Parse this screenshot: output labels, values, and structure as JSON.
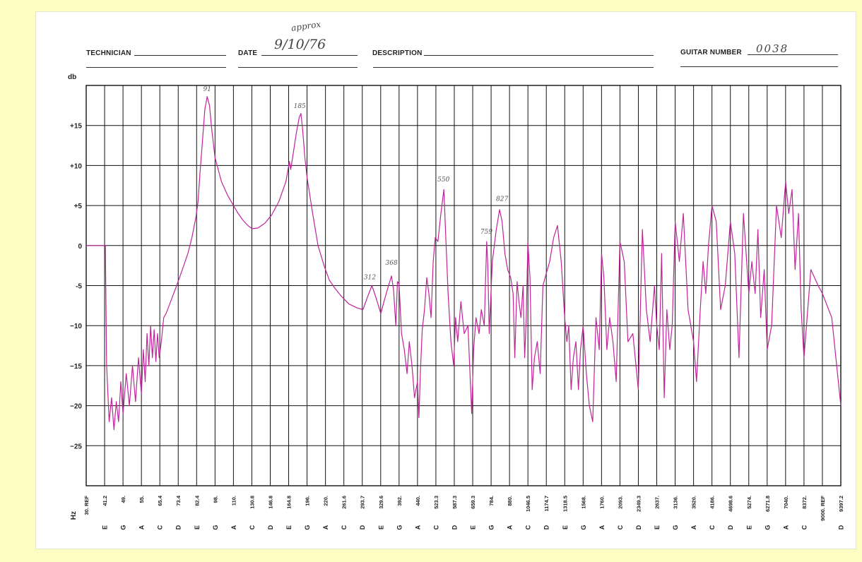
{
  "header": {
    "technician_label": "TECHNICIAN",
    "date_label": "DATE",
    "date_value": "9/10/76",
    "date_note": "approx",
    "description_label": "DESCRIPTION",
    "guitar_number_label": "GUITAR NUMBER",
    "guitar_number_value": "0038"
  },
  "colors": {
    "trace": "#c0249a",
    "grid": "#111111",
    "paper": "#ffffff",
    "background": "#fdfdc4"
  },
  "chart_data": {
    "type": "line",
    "title": "",
    "xlabel": "Hz",
    "ylabel": "db",
    "x_scale": "log",
    "xlim": [
      30,
      9397.2
    ],
    "ylim": [
      -30,
      20
    ],
    "grid": true,
    "legend": "none",
    "y_ticks": [
      {
        "value": 15,
        "label": "+15"
      },
      {
        "value": 10,
        "label": "+10"
      },
      {
        "value": 5,
        "label": "+5"
      },
      {
        "value": 0,
        "label": "0"
      },
      {
        "value": -5,
        "label": "-5"
      },
      {
        "value": -10,
        "label": "−10"
      },
      {
        "value": -15,
        "label": "−15"
      },
      {
        "value": -20,
        "label": "−20"
      },
      {
        "value": -25,
        "label": "−25"
      }
    ],
    "x_ticks": [
      {
        "value": 30,
        "freq": "30. REF",
        "note": ""
      },
      {
        "value": 41.2,
        "freq": "41.2",
        "note": "E"
      },
      {
        "value": 49,
        "freq": "49.",
        "note": "G"
      },
      {
        "value": 55,
        "freq": "55.",
        "note": "A"
      },
      {
        "value": 65.4,
        "freq": "65.4",
        "note": "C"
      },
      {
        "value": 73.4,
        "freq": "73.4",
        "note": "D"
      },
      {
        "value": 82.4,
        "freq": "82.4",
        "note": "E"
      },
      {
        "value": 98,
        "freq": "98.",
        "note": "G"
      },
      {
        "value": 110,
        "freq": "110.",
        "note": "A"
      },
      {
        "value": 130.8,
        "freq": "130.8",
        "note": "C"
      },
      {
        "value": 146.8,
        "freq": "146.8",
        "note": "D"
      },
      {
        "value": 164.8,
        "freq": "164.8",
        "note": "E"
      },
      {
        "value": 196,
        "freq": "196.",
        "note": "G"
      },
      {
        "value": 220,
        "freq": "220.",
        "note": "A"
      },
      {
        "value": 261.6,
        "freq": "261.6",
        "note": "C"
      },
      {
        "value": 293.7,
        "freq": "293.7",
        "note": "D"
      },
      {
        "value": 329.6,
        "freq": "329.6",
        "note": "E"
      },
      {
        "value": 392,
        "freq": "392.",
        "note": "G"
      },
      {
        "value": 440,
        "freq": "440.",
        "note": "A"
      },
      {
        "value": 523.3,
        "freq": "523.3",
        "note": "C"
      },
      {
        "value": 587.3,
        "freq": "587.3",
        "note": "D"
      },
      {
        "value": 659.3,
        "freq": "659.3",
        "note": "E"
      },
      {
        "value": 784,
        "freq": "784.",
        "note": "G"
      },
      {
        "value": 880,
        "freq": "880.",
        "note": "A"
      },
      {
        "value": 1046.5,
        "freq": "1046.5",
        "note": "C"
      },
      {
        "value": 1174.7,
        "freq": "1174.7",
        "note": "D"
      },
      {
        "value": 1318.5,
        "freq": "1318.5",
        "note": "E"
      },
      {
        "value": 1568,
        "freq": "1568.",
        "note": "G"
      },
      {
        "value": 1760,
        "freq": "1760.",
        "note": "A"
      },
      {
        "value": 2093,
        "freq": "2093.",
        "note": "C"
      },
      {
        "value": 2349.3,
        "freq": "2349.3",
        "note": "D"
      },
      {
        "value": 2637,
        "freq": "2637.",
        "note": "E"
      },
      {
        "value": 3136,
        "freq": "3136.",
        "note": "G"
      },
      {
        "value": 3520,
        "freq": "3520.",
        "note": "A"
      },
      {
        "value": 4186,
        "freq": "4186.",
        "note": "C"
      },
      {
        "value": 4698.6,
        "freq": "4698.6",
        "note": "D"
      },
      {
        "value": 5274,
        "freq": "5274.",
        "note": "E"
      },
      {
        "value": 6271.8,
        "freq": "6271.8",
        "note": "G"
      },
      {
        "value": 7040,
        "freq": "7040.",
        "note": "A"
      },
      {
        "value": 8372,
        "freq": "8372.",
        "note": "C"
      },
      {
        "value": 9000,
        "freq": "9000. REF",
        "note": ""
      },
      {
        "value": 9397.2,
        "freq": "9397.2",
        "note": "D"
      }
    ],
    "annotations": [
      {
        "text": "91",
        "x": 91,
        "y": 19.3
      },
      {
        "text": "185",
        "x": 183,
        "y": 17.2
      },
      {
        "text": "312",
        "x": 308,
        "y": -4.2
      },
      {
        "text": "368",
        "x": 365,
        "y": -2.4
      },
      {
        "text": "550",
        "x": 549,
        "y": 8.0
      },
      {
        "text": "759",
        "x": 750,
        "y": 1.5
      },
      {
        "text": "827",
        "x": 840,
        "y": 5.6
      }
    ],
    "series": [
      {
        "values": [
          [
            30,
            0
          ],
          [
            40,
            0
          ],
          [
            41.5,
            0
          ],
          [
            42,
            -15
          ],
          [
            43,
            -22
          ],
          [
            44,
            -19
          ],
          [
            45,
            -23
          ],
          [
            46,
            -19.5
          ],
          [
            47,
            -22
          ],
          [
            48,
            -17
          ],
          [
            49,
            -21
          ],
          [
            50,
            -16
          ],
          [
            51,
            -20
          ],
          [
            52,
            -15
          ],
          [
            53,
            -19.5
          ],
          [
            54,
            -14
          ],
          [
            55,
            -18.5
          ],
          [
            56,
            -13
          ],
          [
            57,
            -17
          ],
          [
            58,
            -11
          ],
          [
            59,
            -15
          ],
          [
            60,
            -10
          ],
          [
            61,
            -14
          ],
          [
            62,
            -10.5
          ],
          [
            63,
            -14.5
          ],
          [
            64,
            -11
          ],
          [
            65,
            -14
          ],
          [
            66,
            -12
          ],
          [
            67,
            -9
          ],
          [
            68,
            -8.5
          ],
          [
            70,
            -7
          ],
          [
            72,
            -5.5
          ],
          [
            74,
            -4
          ],
          [
            76,
            -2.5
          ],
          [
            78,
            -1
          ],
          [
            80,
            1
          ],
          [
            82,
            3.5
          ],
          [
            83.5,
            5.5
          ],
          [
            85,
            9
          ],
          [
            87,
            13
          ],
          [
            89,
            17
          ],
          [
            91,
            18.6
          ],
          [
            93,
            17.5
          ],
          [
            95,
            14.5
          ],
          [
            98,
            11
          ],
          [
            102,
            8
          ],
          [
            106,
            6.3
          ],
          [
            110,
            5
          ],
          [
            115,
            4
          ],
          [
            120,
            3.2
          ],
          [
            126,
            2.5
          ],
          [
            131,
            2.1
          ],
          [
            136,
            2.2
          ],
          [
            142,
            2.8
          ],
          [
            148,
            3.8
          ],
          [
            155,
            5.5
          ],
          [
            162,
            8
          ],
          [
            166,
            10.5
          ],
          [
            168,
            9.5
          ],
          [
            172,
            11.5
          ],
          [
            177,
            14
          ],
          [
            182,
            16
          ],
          [
            185,
            16.5
          ],
          [
            188,
            14.5
          ],
          [
            192,
            11
          ],
          [
            196,
            8.5
          ],
          [
            203,
            4
          ],
          [
            210,
            0
          ],
          [
            218,
            -2.5
          ],
          [
            228,
            -4.3
          ],
          [
            240,
            -5.3
          ],
          [
            255,
            -6.3
          ],
          [
            270,
            -7.3
          ],
          [
            285,
            -7.8
          ],
          [
            295,
            -8
          ],
          [
            303,
            -6.5
          ],
          [
            312,
            -5
          ],
          [
            320,
            -6.5
          ],
          [
            330,
            -8.5
          ],
          [
            340,
            -7
          ],
          [
            355,
            -5
          ],
          [
            365,
            -3.8
          ],
          [
            372,
            -5.5
          ],
          [
            380,
            -10
          ],
          [
            386,
            -4.5
          ],
          [
            392,
            -4.8
          ],
          [
            398,
            -11
          ],
          [
            405,
            -13
          ],
          [
            412,
            -16
          ],
          [
            418,
            -12
          ],
          [
            425,
            -15
          ],
          [
            432,
            -19
          ],
          [
            440,
            -17
          ],
          [
            446,
            -21.5
          ],
          [
            452,
            -16
          ],
          [
            460,
            -10.5
          ],
          [
            470,
            -8
          ],
          [
            480,
            -4
          ],
          [
            490,
            -6
          ],
          [
            500,
            -9
          ],
          [
            510,
            -2
          ],
          [
            520,
            1
          ],
          [
            530,
            0.5
          ],
          [
            540,
            4
          ],
          [
            550,
            7
          ],
          [
            558,
            0
          ],
          [
            565,
            -6
          ],
          [
            575,
            -12
          ],
          [
            585,
            -15
          ],
          [
            592,
            -9
          ],
          [
            600,
            -12
          ],
          [
            612,
            -7
          ],
          [
            625,
            -11
          ],
          [
            640,
            -10
          ],
          [
            655,
            -21
          ],
          [
            665,
            -13
          ],
          [
            680,
            -9
          ],
          [
            700,
            -11
          ],
          [
            715,
            -8
          ],
          [
            735,
            -10
          ],
          [
            752,
            0.5
          ],
          [
            760,
            -2.5
          ],
          [
            770,
            -11
          ],
          [
            790,
            -2
          ],
          [
            810,
            2
          ],
          [
            827,
            4.5
          ],
          [
            840,
            3
          ],
          [
            855,
            -1
          ],
          [
            870,
            -3
          ],
          [
            890,
            -4
          ],
          [
            910,
            -6
          ],
          [
            925,
            -14
          ],
          [
            945,
            -4.5
          ],
          [
            962,
            -7
          ],
          [
            980,
            -9
          ],
          [
            1000,
            -5
          ],
          [
            1015,
            -14
          ],
          [
            1030,
            -9
          ],
          [
            1046,
            0.5
          ],
          [
            1060,
            -4
          ],
          [
            1075,
            -18
          ],
          [
            1090,
            -14
          ],
          [
            1110,
            -12
          ],
          [
            1130,
            -16
          ],
          [
            1150,
            -5
          ],
          [
            1174,
            -3.5
          ],
          [
            1200,
            -2
          ],
          [
            1230,
            1
          ],
          [
            1260,
            2.5
          ],
          [
            1290,
            -2
          ],
          [
            1318,
            -9
          ],
          [
            1345,
            -12
          ],
          [
            1370,
            -10
          ],
          [
            1400,
            -18
          ],
          [
            1430,
            -14
          ],
          [
            1465,
            -12
          ],
          [
            1500,
            -18
          ],
          [
            1530,
            -13
          ],
          [
            1568,
            -10
          ],
          [
            1600,
            -16
          ],
          [
            1630,
            -20
          ],
          [
            1665,
            -22
          ],
          [
            1700,
            -9
          ],
          [
            1735,
            -13
          ],
          [
            1760,
            -1
          ],
          [
            1800,
            -4
          ],
          [
            1850,
            -13
          ],
          [
            1900,
            -9
          ],
          [
            1960,
            -12
          ],
          [
            2020,
            -17
          ],
          [
            2093,
            0.5
          ],
          [
            2150,
            -2
          ],
          [
            2200,
            -12
          ],
          [
            2270,
            -11
          ],
          [
            2349,
            -18
          ],
          [
            2410,
            2
          ],
          [
            2470,
            -8
          ],
          [
            2530,
            -12
          ],
          [
            2600,
            -5
          ],
          [
            2637,
            -10
          ],
          [
            2700,
            -13
          ],
          [
            2760,
            -1
          ],
          [
            2830,
            -19
          ],
          [
            2900,
            -8
          ],
          [
            2980,
            -13
          ],
          [
            3050,
            -10
          ],
          [
            3136,
            3
          ],
          [
            3220,
            -2
          ],
          [
            3300,
            4
          ],
          [
            3400,
            -8
          ],
          [
            3520,
            -12
          ],
          [
            3620,
            -17
          ],
          [
            3750,
            -8
          ],
          [
            3850,
            -2
          ],
          [
            3950,
            -6
          ],
          [
            4050,
            0
          ],
          [
            4186,
            5
          ],
          [
            4300,
            3
          ],
          [
            4420,
            -8
          ],
          [
            4550,
            -5
          ],
          [
            4698,
            3
          ],
          [
            4830,
            -1
          ],
          [
            4960,
            -14
          ],
          [
            5100,
            4
          ],
          [
            5274,
            -6
          ],
          [
            5430,
            -2
          ],
          [
            5600,
            -6
          ],
          [
            5750,
            2
          ],
          [
            5900,
            -9
          ],
          [
            6100,
            -3
          ],
          [
            6271,
            -13
          ],
          [
            6450,
            -10
          ],
          [
            6650,
            5
          ],
          [
            6850,
            1
          ],
          [
            7040,
            8
          ],
          [
            7250,
            4
          ],
          [
            7480,
            7
          ],
          [
            7700,
            -3
          ],
          [
            7950,
            4
          ],
          [
            8150,
            -8
          ],
          [
            8372,
            -14
          ],
          [
            8600,
            -3
          ],
          [
            8850,
            -5
          ],
          [
            9000,
            -6
          ],
          [
            9200,
            -9
          ],
          [
            9397,
            -20
          ]
        ]
      }
    ]
  }
}
